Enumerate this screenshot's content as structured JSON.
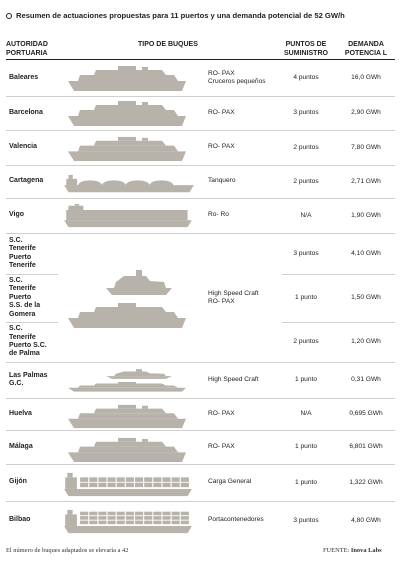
{
  "title": "Resumen de actuaciones propuestas para 11 puertos y una demanda potencial de 52 GW/h",
  "headers": {
    "autoridad": "AUTORIDAD PORTUARIA",
    "tipo": "TIPO DE BUQUES",
    "puntos": "PUNTOS DE SUMINISTRO",
    "demanda": "DEMANDA POTENCIA L"
  },
  "rows": [
    {
      "autoridad": "Baleares",
      "tipo": "RO- PAX\nCruceros pequeños",
      "puntos": "4 puntos",
      "demanda": "16,0 GWh",
      "ship_icon": "ropax-ship-icon"
    },
    {
      "autoridad": "Barcelona",
      "tipo": "RO- PAX",
      "puntos": "3 puntos",
      "demanda": "2,90 GWh",
      "ship_icon": "ropax-ship-icon"
    },
    {
      "autoridad": "Valencia",
      "tipo": "RO- PAX",
      "puntos": "2 puntos",
      "demanda": "7,80 GWh",
      "ship_icon": "ropax-ship-icon"
    },
    {
      "autoridad": "Cartagena",
      "tipo": "Tanquero",
      "puntos": "2 puntos",
      "demanda": "2,71 GWh",
      "ship_icon": "tanker-ship-icon"
    },
    {
      "autoridad": "Vigo",
      "tipo": "Ro- Ro",
      "puntos": "N/A",
      "demanda": "1,90 GWh",
      "ship_icon": "roro-ship-icon"
    },
    {
      "autoridad": "S.C.\nTenerife\nPuerto\nTenerife",
      "tipo": "",
      "puntos": "3 puntos",
      "demanda": "4,10 GWh",
      "ship_icon": ""
    },
    {
      "autoridad": "S.C.\nTenerife\nPuerto\nS.S. de la\nGomera",
      "tipo": "High Speed Craft\nRO- PAX",
      "puntos": "1 punto",
      "demanda": "1,50 GWh",
      "ship_icon": "highspeed-ship-icon"
    },
    {
      "autoridad": "S.C.\nTenerife\nPuerto S.C.\nde Palma",
      "tipo": "",
      "puntos": "2 puntos",
      "demanda": "1,20 GWh",
      "ship_icon": ""
    },
    {
      "autoridad": "Las Palmas\nG.C.",
      "tipo": "High Speed Craft",
      "puntos": "1 punto",
      "demanda": "0,31 GWh",
      "ship_icon": "highspeed-ship-icon"
    },
    {
      "autoridad": "Huelva",
      "tipo": "RO- PAX",
      "puntos": "N/A",
      "demanda": "0,695 GWh",
      "ship_icon": "ropax-ship-icon"
    },
    {
      "autoridad": "Málaga",
      "tipo": "RO- PAX",
      "puntos": "1 punto",
      "demanda": "6,801 GWh",
      "ship_icon": "ropax-ship-icon"
    },
    {
      "autoridad": "Gijón",
      "tipo": "Carga General",
      "puntos": "1 punto",
      "demanda": "1,322 GWh",
      "ship_icon": "cargo-ship-icon"
    },
    {
      "autoridad": "Bilbao",
      "tipo": "Portacontenedores",
      "puntos": "3 puntos",
      "demanda": "4,80 GWh",
      "ship_icon": "container-ship-icon"
    }
  ],
  "footer": {
    "note": "El número de buques adaptados se elevaría a 42",
    "source_label": "FUENTE:",
    "source": "Inova Labs"
  },
  "colors": {
    "ship": "#b7b3ab",
    "text": "#222222",
    "separator": "#cfcfcf"
  }
}
